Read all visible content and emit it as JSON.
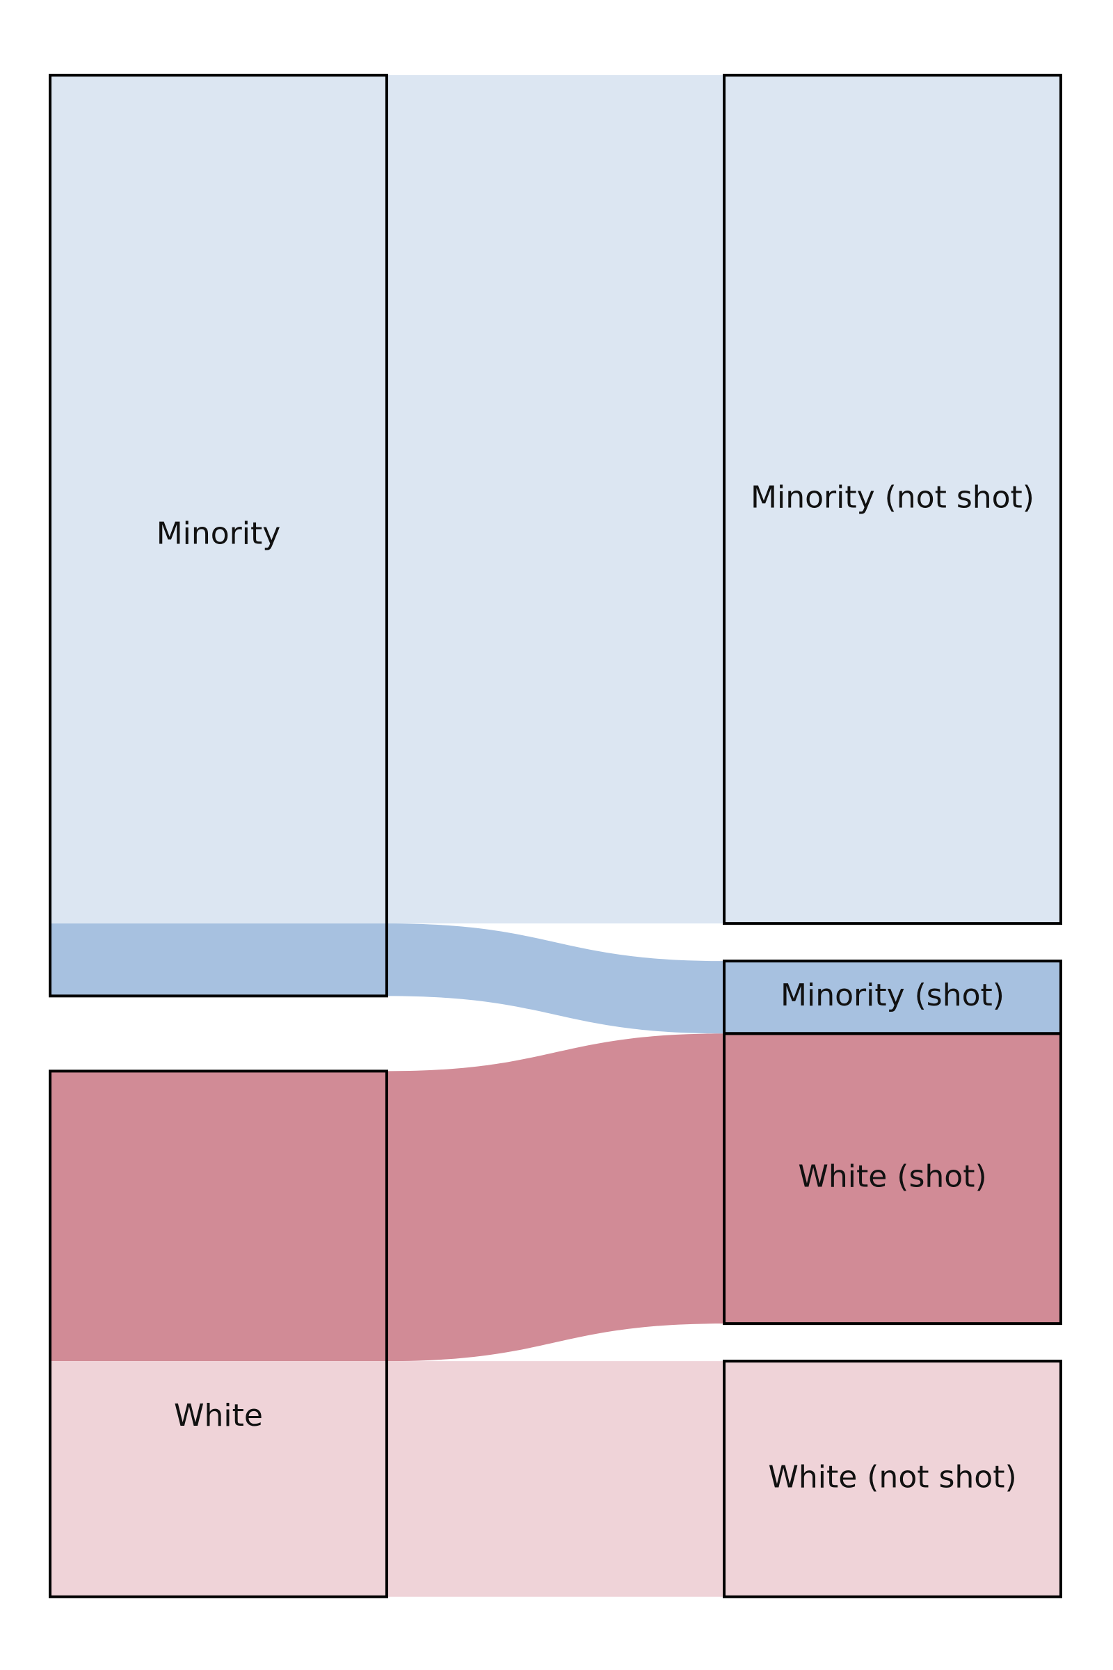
{
  "chart_data": {
    "type": "sankey",
    "title": "",
    "colors": {
      "minority_light": "#dce6f2",
      "minority_strong": "#a7c1e0",
      "white_strong": "#d18b96",
      "white_light": "#efd3d8",
      "node_stroke": "#000000"
    },
    "nodes": [
      {
        "id": "minority",
        "label": "Minority",
        "column": 0
      },
      {
        "id": "white",
        "label": "White",
        "column": 0
      },
      {
        "id": "minority_not_shot",
        "label": "Minority (not shot)",
        "column": 1
      },
      {
        "id": "minority_shot",
        "label": "Minority (shot)",
        "column": 1
      },
      {
        "id": "white_shot",
        "label": "White (shot)",
        "column": 1
      },
      {
        "id": "white_not_shot",
        "label": "White (not shot)",
        "column": 1
      }
    ],
    "links": [
      {
        "source": "minority",
        "target": "minority_not_shot",
        "value": 117,
        "color_key": "minority_light"
      },
      {
        "source": "minority",
        "target": "minority_shot",
        "value": 10,
        "color_key": "minority_strong"
      },
      {
        "source": "white",
        "target": "white_shot",
        "value": 40,
        "color_key": "white_strong"
      },
      {
        "source": "white",
        "target": "white_not_shot",
        "value": 32.5,
        "color_key": "white_light"
      }
    ]
  }
}
